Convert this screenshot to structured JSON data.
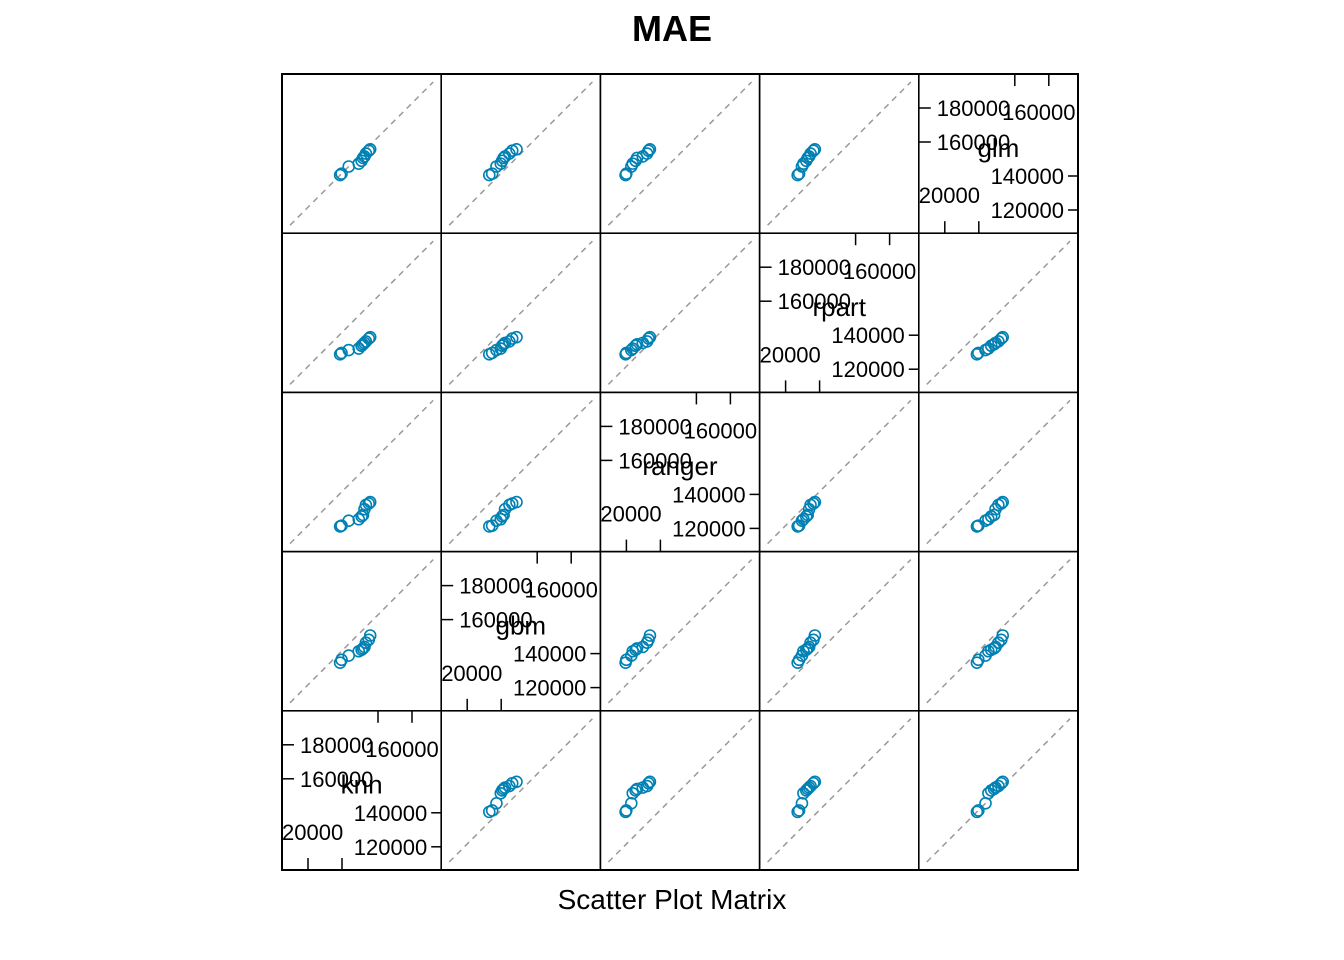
{
  "chart_data": {
    "type": "scatter-matrix",
    "title": "MAE",
    "xlabel": "Scatter Plot Matrix",
    "variables": [
      "knn",
      "gbm",
      "ranger",
      "rpart",
      "glm"
    ],
    "axis_range": [
      100000,
      200000
    ],
    "ticks_major": [
      120000,
      140000,
      160000,
      180000
    ],
    "tick_labels": {
      "t1": "120000",
      "t2": "140000",
      "t3": "160000",
      "t4": "180000",
      "t2b": "20000",
      "t3b": "160000"
    },
    "colors": {
      "points": "#0080b3",
      "reference": "#999999",
      "frame": "#000000"
    },
    "reference_line": "y = x (dashed)",
    "observations": {
      "knn": [
        135000,
        136000,
        141000,
        148000,
        150000,
        151000,
        152000,
        153000,
        155000,
        156000
      ],
      "gbm": [
        128000,
        130000,
        133000,
        136000,
        137000,
        138000,
        139000,
        142000,
        144000,
        147000
      ],
      "ranger": [
        112000,
        112500,
        116000,
        117000,
        119000,
        120000,
        124000,
        127000,
        128000,
        129000
      ],
      "rpart": [
        121000,
        122000,
        124000,
        125000,
        127000,
        128000,
        129000,
        130000,
        132000,
        133000
      ],
      "glm": [
        135000,
        136000,
        141000,
        143000,
        145000,
        147000,
        148000,
        150000,
        152000,
        153000
      ]
    }
  }
}
